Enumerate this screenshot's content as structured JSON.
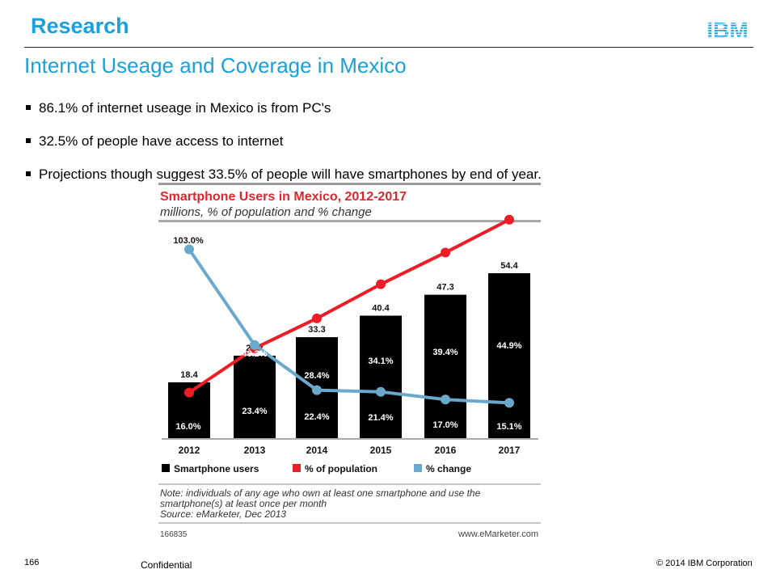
{
  "header": {
    "section": "Research",
    "logo_text": "IBM",
    "title": "Internet Useage and Coverage in Mexico"
  },
  "bullets": [
    "86.1% of internet useage in Mexico is from PC's",
    "32.5% of people have access to internet",
    "Projections though suggest 33.5% of people will have smartphones by end of year."
  ],
  "chart_data": {
    "type": "bar",
    "title": "Smartphone Users in Mexico, 2012-2017",
    "subtitle": "millions, % of population and % change",
    "categories": [
      "2012",
      "2013",
      "2014",
      "2015",
      "2016",
      "2017"
    ],
    "series": [
      {
        "name": "Smartphone users",
        "type": "bar",
        "color": "#000000",
        "values": [
          18.4,
          27.2,
          33.3,
          40.4,
          47.3,
          54.4
        ],
        "labels": [
          "18.4",
          "27.2",
          "33.3",
          "40.4",
          "47.3",
          "54.4"
        ]
      },
      {
        "name": "% of population",
        "type": "line",
        "color": "#ee1c25",
        "values": [
          16.0,
          23.4,
          28.4,
          34.1,
          39.4,
          44.9
        ],
        "labels": [
          "16.0%",
          "23.4%",
          "28.4%",
          "34.1%",
          "39.4%",
          "44.9%"
        ]
      },
      {
        "name": "% change",
        "type": "line",
        "color": "#6aa9cc",
        "values": [
          103.0,
          48.2,
          22.4,
          21.4,
          17.0,
          15.1
        ],
        "labels": [
          "103.0%",
          "48.2%",
          "22.4%",
          "21.4%",
          "17.0%",
          "15.1%"
        ]
      }
    ],
    "note_lines": [
      "Note: individuals of any age who own at least one smartphone and use the",
      "smartphone(s) at least once per month",
      "Source: eMarketer, Dec 2013"
    ],
    "chart_id": "166835",
    "brand": "www.eMarketer.com",
    "legend_position": "bottom",
    "grid": false
  },
  "footer": {
    "page_number": "166",
    "confidential": "Confidential",
    "copyright": "© 2014 IBM Corporation"
  }
}
